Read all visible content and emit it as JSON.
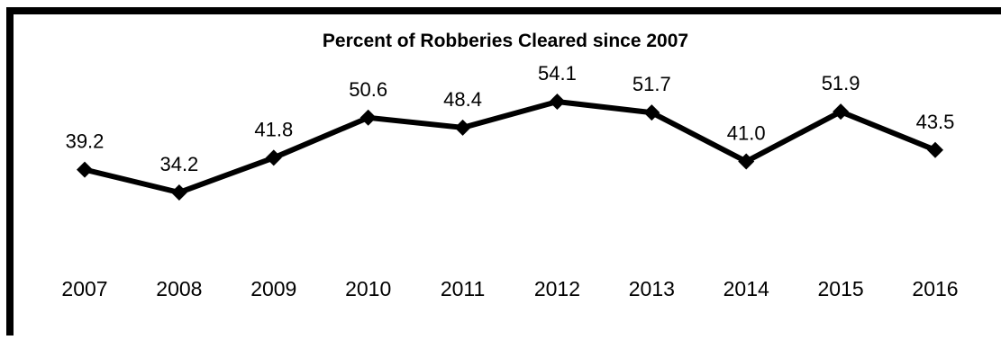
{
  "chart_data": {
    "type": "line",
    "title": "Percent of Robberies Cleared since 2007",
    "xlabel": "",
    "ylabel": "",
    "categories": [
      "2007",
      "2008",
      "2009",
      "2010",
      "2011",
      "2012",
      "2013",
      "2014",
      "2015",
      "2016"
    ],
    "series": [
      {
        "values": [
          39.2,
          34.2,
          41.8,
          50.6,
          48.4,
          54.1,
          51.7,
          41.0,
          51.9,
          43.5
        ]
      }
    ],
    "data_labels": [
      "39.2",
      "34.2",
      "41.8",
      "50.6",
      "48.4",
      "54.1",
      "51.7",
      "41.0",
      "51.9",
      "43.5"
    ],
    "ylim": [
      30,
      57
    ],
    "grid": false,
    "legend": "none",
    "marker": "diamond",
    "colors": {
      "line": "#000000",
      "frame": "#000000",
      "text": "#000000",
      "background": "#ffffff"
    }
  }
}
